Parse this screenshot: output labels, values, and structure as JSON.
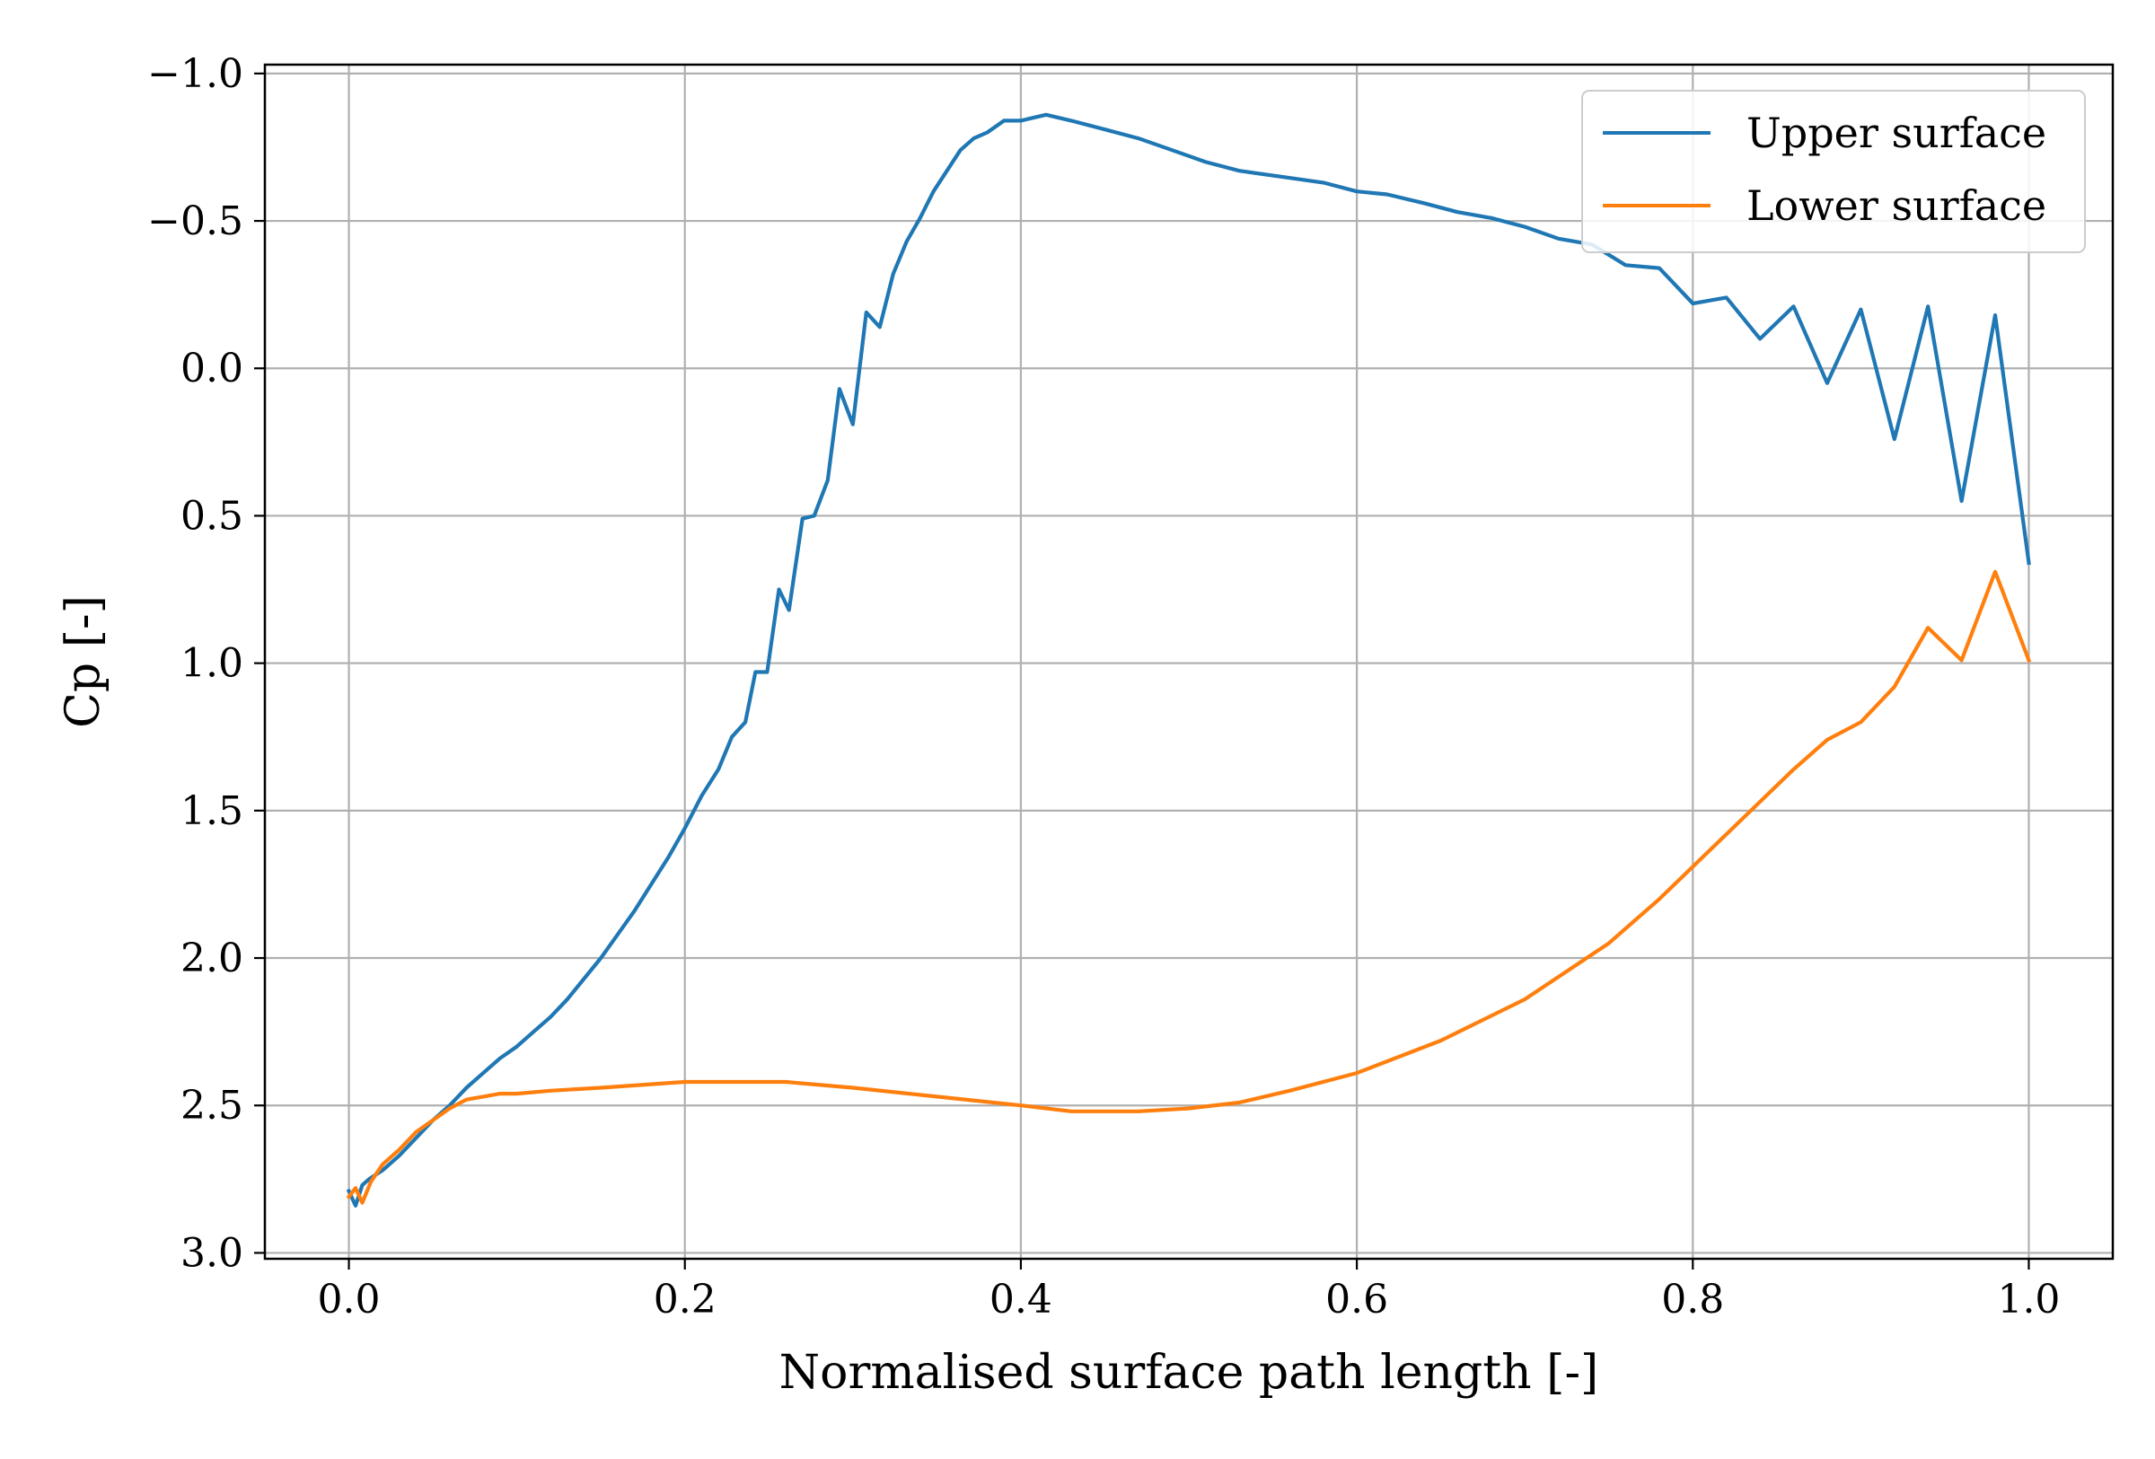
{
  "chart_data": {
    "type": "line",
    "title": "",
    "xlabel": "Normalised surface path length [-]",
    "ylabel": "Cp [-]",
    "xlim": [
      -0.05,
      1.05
    ],
    "ylim": [
      3.02,
      -1.03
    ],
    "y_inverted": true,
    "grid": true,
    "legend_position": "top-right",
    "xticks": [
      0.0,
      0.2,
      0.4,
      0.6,
      0.8,
      1.0
    ],
    "xtick_labels": [
      "0.0",
      "0.2",
      "0.4",
      "0.6",
      "0.8",
      "1.0"
    ],
    "yticks": [
      -1.0,
      -0.5,
      0.0,
      0.5,
      1.0,
      1.5,
      2.0,
      2.5,
      3.0
    ],
    "ytick_labels": [
      "−1.0",
      "−0.5",
      "0.0",
      "0.5",
      "1.0",
      "1.5",
      "2.0",
      "2.5",
      "3.0"
    ],
    "series": [
      {
        "name": "Upper surface",
        "color": "#1f77b4",
        "x": [
          0.0,
          0.004,
          0.008,
          0.012,
          0.02,
          0.03,
          0.04,
          0.05,
          0.06,
          0.07,
          0.08,
          0.09,
          0.1,
          0.11,
          0.12,
          0.13,
          0.14,
          0.15,
          0.16,
          0.17,
          0.18,
          0.19,
          0.2,
          0.21,
          0.22,
          0.228,
          0.236,
          0.242,
          0.249,
          0.256,
          0.262,
          0.27,
          0.277,
          0.285,
          0.292,
          0.3,
          0.308,
          0.316,
          0.324,
          0.332,
          0.34,
          0.348,
          0.356,
          0.364,
          0.372,
          0.38,
          0.39,
          0.4,
          0.415,
          0.43,
          0.45,
          0.47,
          0.49,
          0.51,
          0.53,
          0.555,
          0.58,
          0.6,
          0.618,
          0.64,
          0.66,
          0.68,
          0.7,
          0.72,
          0.74,
          0.76,
          0.78,
          0.8,
          0.82,
          0.84,
          0.86,
          0.88,
          0.9,
          0.92,
          0.94,
          0.96,
          0.98,
          1.0
        ],
        "values": [
          2.79,
          2.84,
          2.77,
          2.75,
          2.72,
          2.67,
          2.61,
          2.55,
          2.5,
          2.44,
          2.39,
          2.34,
          2.3,
          2.25,
          2.2,
          2.14,
          2.07,
          2.0,
          1.92,
          1.84,
          1.75,
          1.66,
          1.56,
          1.45,
          1.36,
          1.25,
          1.2,
          1.03,
          1.03,
          0.75,
          0.82,
          0.51,
          0.5,
          0.38,
          0.07,
          0.19,
          -0.19,
          -0.14,
          -0.32,
          -0.43,
          -0.51,
          -0.6,
          -0.67,
          -0.74,
          -0.78,
          -0.8,
          -0.84,
          -0.84,
          -0.86,
          -0.84,
          -0.81,
          -0.78,
          -0.74,
          -0.7,
          -0.67,
          -0.65,
          -0.63,
          -0.6,
          -0.59,
          -0.56,
          -0.53,
          -0.51,
          -0.48,
          -0.44,
          -0.42,
          -0.35,
          -0.34,
          -0.22,
          -0.24,
          -0.1,
          -0.21,
          0.05,
          -0.2,
          0.24,
          -0.21,
          0.45,
          -0.18,
          0.66
        ]
      },
      {
        "name": "Lower surface",
        "color": "#ff7f0e",
        "x": [
          0.0,
          0.004,
          0.008,
          0.013,
          0.02,
          0.03,
          0.04,
          0.05,
          0.06,
          0.07,
          0.08,
          0.09,
          0.1,
          0.12,
          0.15,
          0.2,
          0.23,
          0.26,
          0.3,
          0.35,
          0.4,
          0.43,
          0.47,
          0.5,
          0.53,
          0.56,
          0.6,
          0.65,
          0.7,
          0.75,
          0.78,
          0.8,
          0.82,
          0.84,
          0.86,
          0.88,
          0.9,
          0.92,
          0.94,
          0.96,
          0.98,
          1.0
        ],
        "values": [
          2.81,
          2.78,
          2.83,
          2.76,
          2.7,
          2.65,
          2.59,
          2.55,
          2.51,
          2.48,
          2.47,
          2.46,
          2.46,
          2.45,
          2.44,
          2.42,
          2.42,
          2.42,
          2.44,
          2.47,
          2.5,
          2.52,
          2.52,
          2.51,
          2.49,
          2.45,
          2.39,
          2.28,
          2.14,
          1.95,
          1.8,
          1.69,
          1.58,
          1.47,
          1.36,
          1.26,
          1.2,
          1.08,
          0.88,
          0.99,
          0.69,
          0.99
        ]
      }
    ]
  }
}
